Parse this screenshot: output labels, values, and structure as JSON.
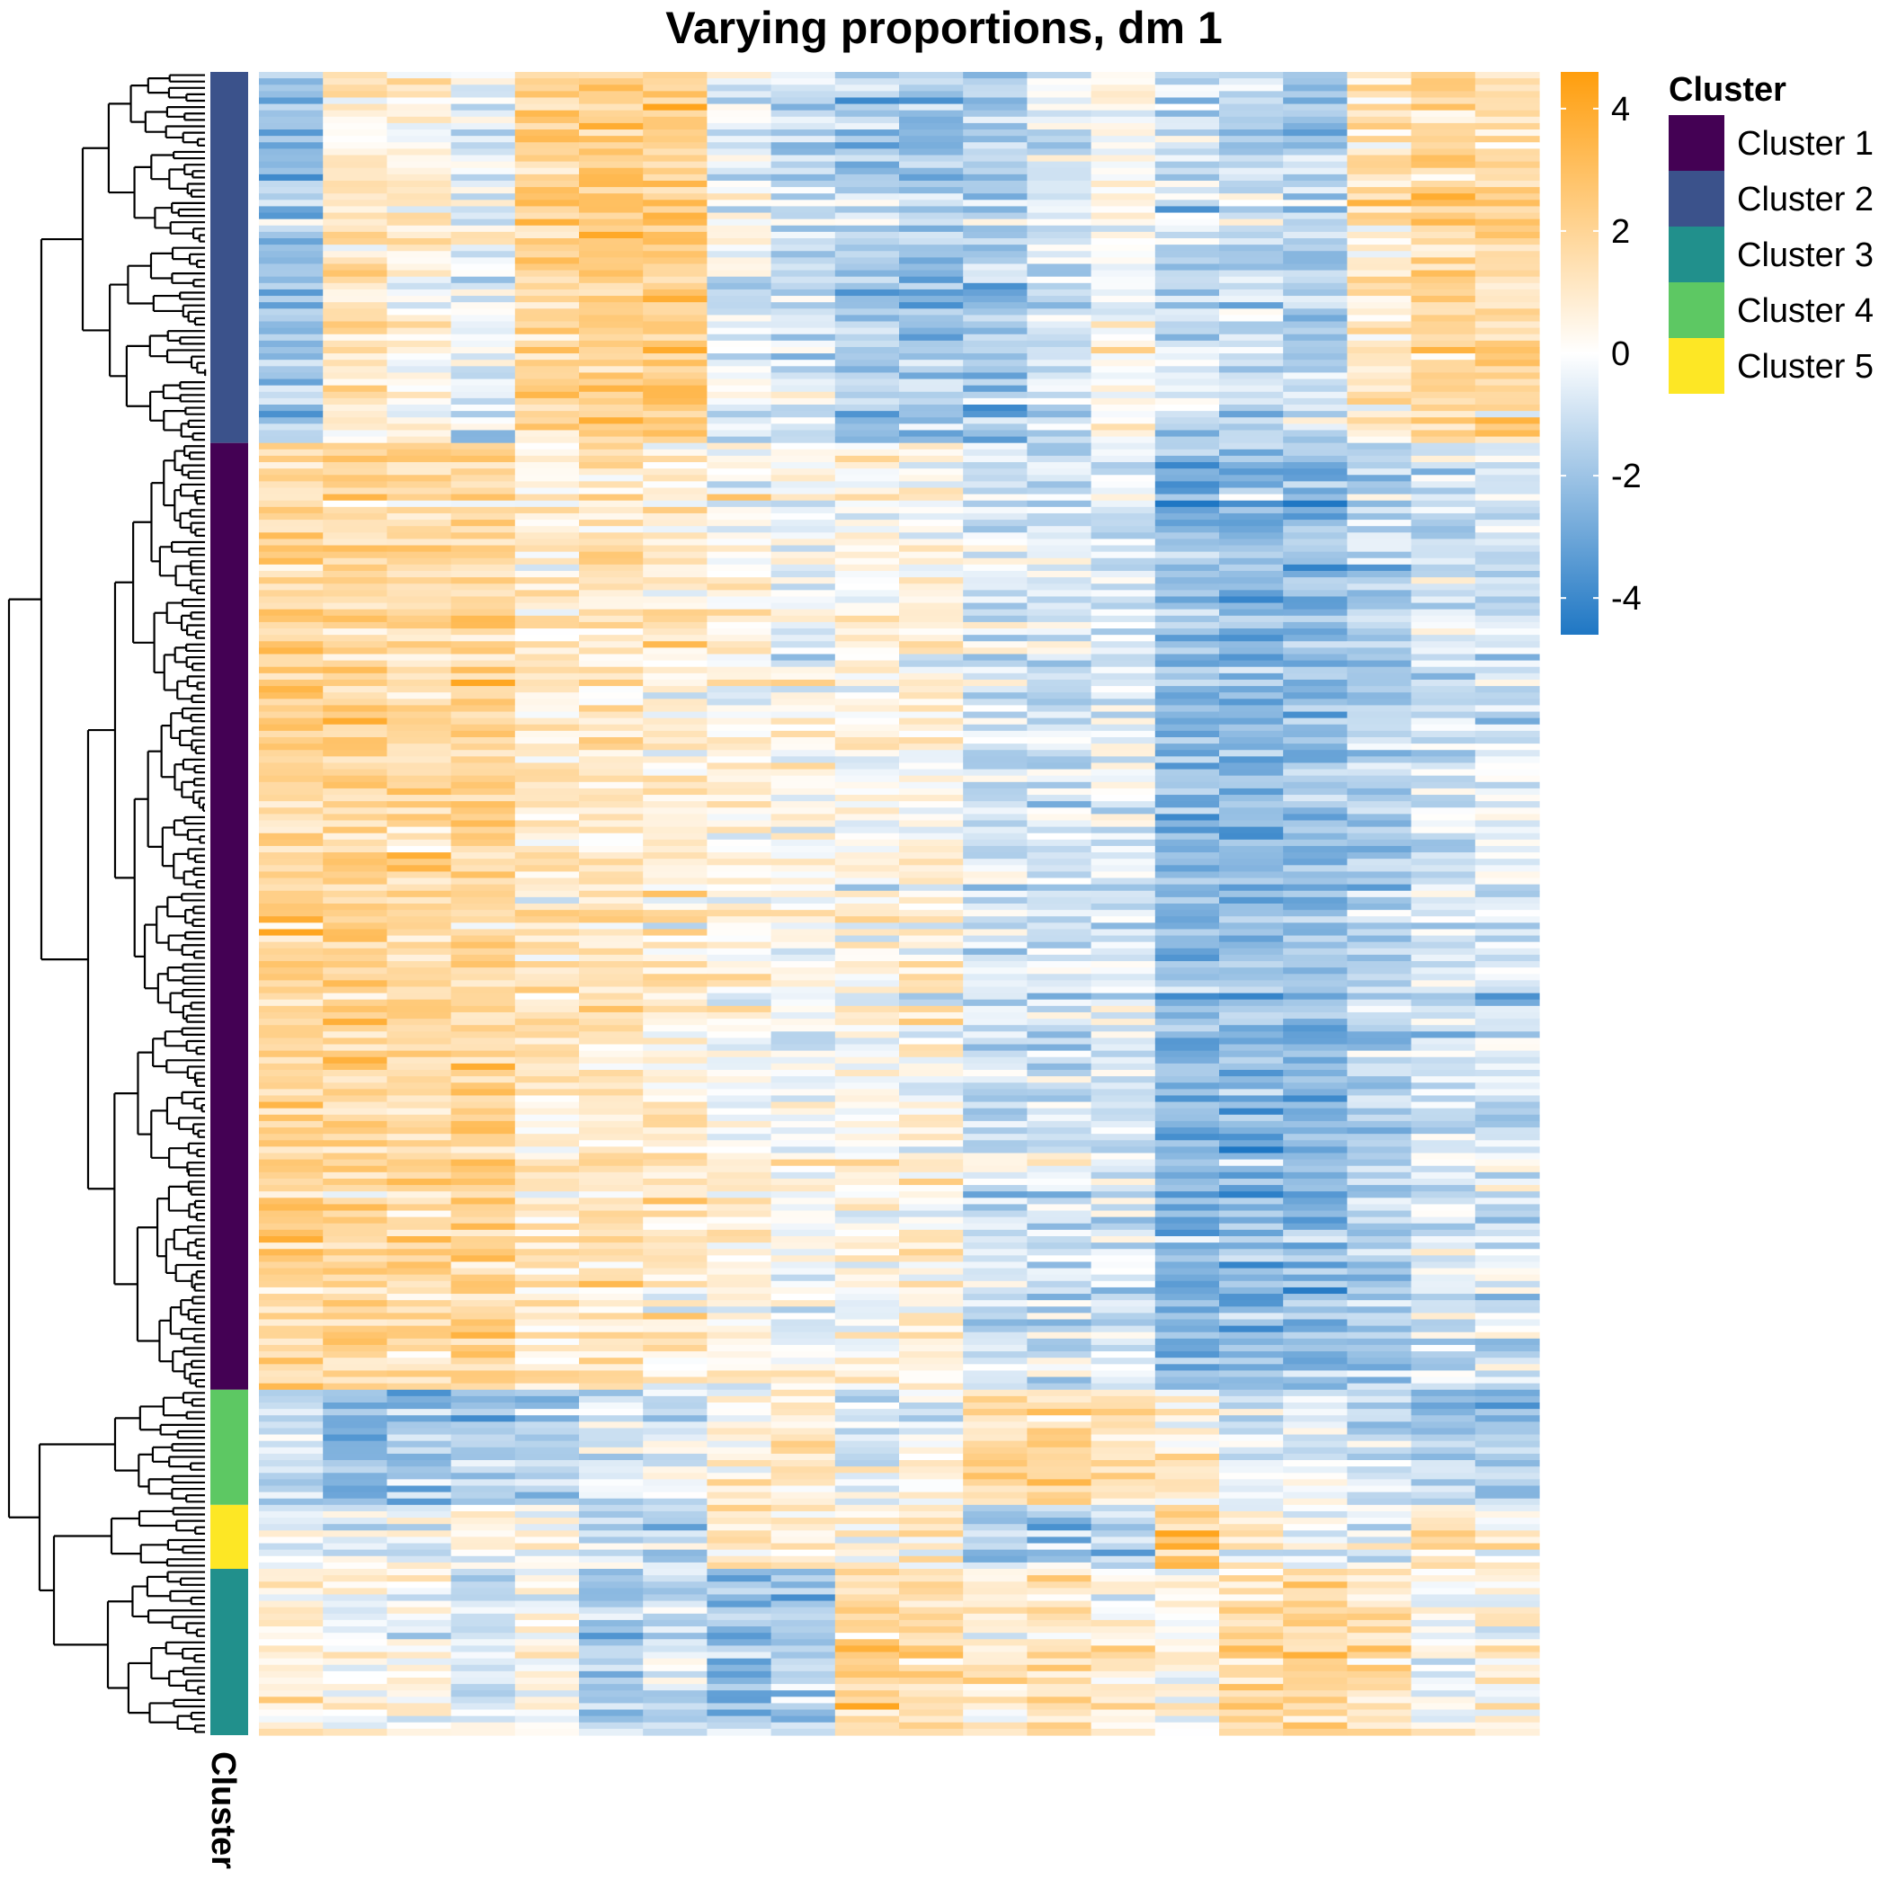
{
  "chart_data": {
    "type": "heatmap",
    "title": "Varying proportions, dm 1",
    "n_columns": 20,
    "row_groups": [
      {
        "cluster": "Cluster 2",
        "rows": 58
      },
      {
        "cluster": "Cluster 1",
        "rows": 148
      },
      {
        "cluster": "Cluster 4",
        "rows": 18
      },
      {
        "cluster": "Cluster 5",
        "rows": 10
      },
      {
        "cluster": "Cluster 3",
        "rows": 26
      }
    ],
    "group_column_means": {
      "Cluster 2": [
        -2.0,
        1.2,
        0.6,
        -0.4,
        2.2,
        2.5,
        2.4,
        -0.6,
        -1.0,
        -1.6,
        -2.0,
        -1.8,
        -1.0,
        0.0,
        -1.2,
        -1.4,
        -1.6,
        1.2,
        1.8,
        1.8
      ],
      "Cluster 1": [
        2.0,
        2.0,
        1.8,
        2.0,
        1.0,
        1.2,
        0.9,
        0.4,
        0.0,
        0.3,
        0.4,
        -0.8,
        -1.0,
        -0.6,
        -2.5,
        -2.3,
        -2.2,
        -1.6,
        -0.8,
        -0.8
      ],
      "Cluster 4": [
        -1.0,
        -2.4,
        -2.0,
        -2.0,
        -1.2,
        -0.6,
        -0.4,
        0.4,
        1.4,
        -0.6,
        -0.2,
        1.6,
        1.6,
        1.2,
        0.8,
        -0.4,
        -0.6,
        -1.0,
        -1.6,
        -1.6
      ],
      "Cluster 5": [
        -0.4,
        -0.8,
        -0.4,
        0.2,
        0.0,
        -1.0,
        -1.4,
        1.2,
        0.8,
        0.4,
        0.6,
        -1.8,
        -2.2,
        -1.8,
        2.2,
        0.4,
        -0.4,
        -0.6,
        1.2,
        0.4
      ],
      "Cluster 3": [
        0.8,
        0.2,
        0.2,
        -0.6,
        0.4,
        -1.4,
        -1.0,
        -2.2,
        -1.4,
        2.0,
        1.8,
        1.0,
        1.2,
        0.8,
        0.4,
        1.6,
        1.8,
        1.4,
        0.2,
        0.6
      ]
    },
    "value_range": [
      -4.6,
      4.6
    ],
    "color_scale": {
      "low": "#1f77c4",
      "mid": "#ffffff",
      "high": "#ff9e0d"
    },
    "colorbar_ticks": [
      4,
      2,
      0,
      -2,
      -4
    ],
    "colorbar_tick_labels": [
      "4",
      "2",
      "0",
      "-2",
      "-4"
    ],
    "annotation_label": "Cluster",
    "legend": {
      "title": "Cluster",
      "position": "right",
      "entries": [
        {
          "label": "Cluster 1",
          "color": "#440154"
        },
        {
          "label": "Cluster 2",
          "color": "#3b528b"
        },
        {
          "label": "Cluster 3",
          "color": "#21908c"
        },
        {
          "label": "Cluster 4",
          "color": "#5dc863"
        },
        {
          "label": "Cluster 5",
          "color": "#fde725"
        }
      ]
    },
    "dendrogram": "rows"
  }
}
